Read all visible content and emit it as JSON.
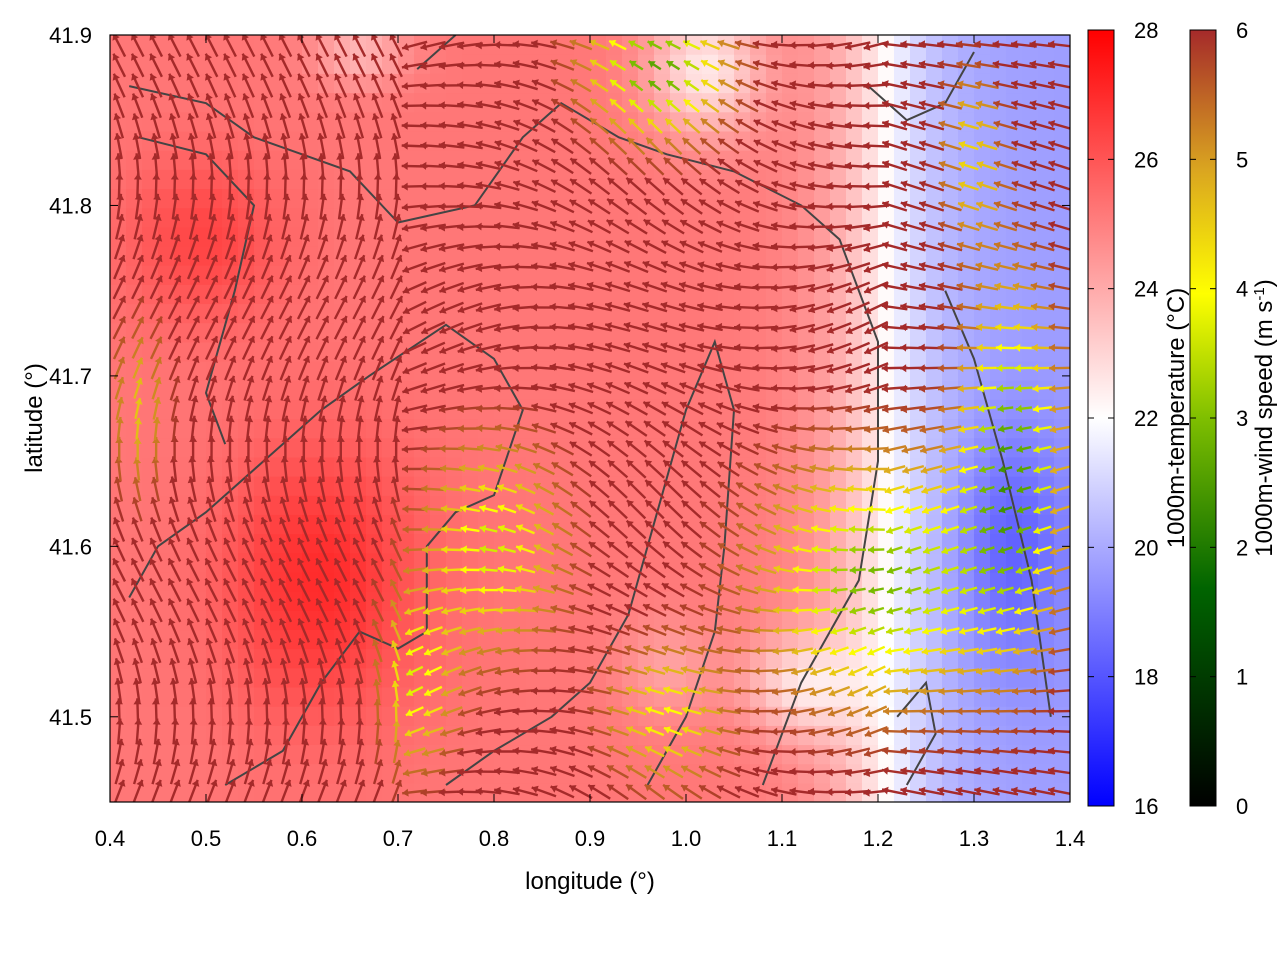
{
  "chart_data": {
    "type": "heatmap",
    "title": "",
    "xlabel": "longitude (°)",
    "ylabel": "latitude (°)",
    "xlim": [
      0.4,
      1.4
    ],
    "ylim": [
      41.45,
      41.9
    ],
    "x_ticks": [
      "0.4",
      "0.5",
      "0.6",
      "0.7",
      "0.8",
      "0.9",
      "1.0",
      "1.1",
      "1.2",
      "1.3",
      "1.4"
    ],
    "y_ticks": [
      "41.5",
      "41.6",
      "41.7",
      "41.8",
      "41.9"
    ],
    "temperature_colorbar": {
      "label": "1000m-temperature (°C)",
      "range": [
        16,
        28
      ],
      "ticks": [
        "16",
        "18",
        "20",
        "22",
        "24",
        "26",
        "28"
      ],
      "colors": [
        "#0000ff",
        "#ffffff",
        "#ff0000"
      ]
    },
    "wind_colorbar": {
      "label_main": "1000m-wind speed (m s",
      "label_sup": "-1",
      "label_end": ")",
      "range": [
        0,
        6
      ],
      "ticks": [
        "0",
        "1",
        "2",
        "3",
        "4",
        "5",
        "6"
      ],
      "colors": [
        "#000000",
        "#006400",
        "#7fbf00",
        "#ffff00",
        "#daa520",
        "#a52a2a"
      ]
    },
    "temperature_field_notes": "Warm (~24-27 °C) over the western half (lon 0.4-0.95), cooler (~17-21 °C) east of lon 1.25 and in patches near lat 41.85-41.9 around lon 0.95-1.1",
    "wind_field_notes": "Strong winds (~6 m s-1) over the west and northeast; weak winds (~1.5-3 m s-1) near lon 0.95-1.0 lat 41.85-41.9 and lon 1.1-1.35 lat 41.5-41.7",
    "grid": false,
    "legend": "colorbars-right"
  },
  "colors": {
    "contour": "#444444",
    "frame": "#000000"
  }
}
